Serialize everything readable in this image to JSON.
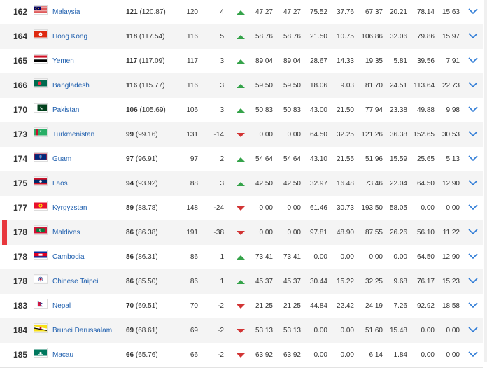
{
  "rows": [
    {
      "rank": "162",
      "country": "Malaysia",
      "flag": "malaysia-flag-icon",
      "pts": "121",
      "pts_exact": "(120.87)",
      "prev": "120",
      "diff": "4",
      "trend": "up",
      "a": "47.27",
      "b": "47.27",
      "c": "75.52",
      "d": "37.76",
      "e": "67.37",
      "f": "20.21",
      "g": "78.14",
      "h": "15.63",
      "highlight": false
    },
    {
      "rank": "164",
      "country": "Hong Kong",
      "flag": "hong-kong-flag-icon",
      "pts": "118",
      "pts_exact": "(117.54)",
      "prev": "116",
      "diff": "5",
      "trend": "up",
      "a": "58.76",
      "b": "58.76",
      "c": "21.50",
      "d": "10.75",
      "e": "106.86",
      "f": "32.06",
      "g": "79.86",
      "h": "15.97",
      "highlight": false
    },
    {
      "rank": "165",
      "country": "Yemen",
      "flag": "yemen-flag-icon",
      "pts": "117",
      "pts_exact": "(117.09)",
      "prev": "117",
      "diff": "3",
      "trend": "up",
      "a": "89.04",
      "b": "89.04",
      "c": "28.67",
      "d": "14.33",
      "e": "19.35",
      "f": "5.81",
      "g": "39.56",
      "h": "7.91",
      "highlight": false
    },
    {
      "rank": "166",
      "country": "Bangladesh",
      "flag": "bangladesh-flag-icon",
      "pts": "116",
      "pts_exact": "(115.77)",
      "prev": "116",
      "diff": "3",
      "trend": "up",
      "a": "59.50",
      "b": "59.50",
      "c": "18.06",
      "d": "9.03",
      "e": "81.70",
      "f": "24.51",
      "g": "113.64",
      "h": "22.73",
      "highlight": false
    },
    {
      "rank": "170",
      "country": "Pakistan",
      "flag": "pakistan-flag-icon",
      "pts": "106",
      "pts_exact": "(105.69)",
      "prev": "106",
      "diff": "3",
      "trend": "up",
      "a": "50.83",
      "b": "50.83",
      "c": "43.00",
      "d": "21.50",
      "e": "77.94",
      "f": "23.38",
      "g": "49.88",
      "h": "9.98",
      "highlight": false
    },
    {
      "rank": "173",
      "country": "Turkmenistan",
      "flag": "turkmenistan-flag-icon",
      "pts": "99",
      "pts_exact": "(99.16)",
      "prev": "131",
      "diff": "-14",
      "trend": "down",
      "a": "0.00",
      "b": "0.00",
      "c": "64.50",
      "d": "32.25",
      "e": "121.26",
      "f": "36.38",
      "g": "152.65",
      "h": "30.53",
      "highlight": false
    },
    {
      "rank": "174",
      "country": "Guam",
      "flag": "guam-flag-icon",
      "pts": "97",
      "pts_exact": "(96.91)",
      "prev": "97",
      "diff": "2",
      "trend": "up",
      "a": "54.64",
      "b": "54.64",
      "c": "43.10",
      "d": "21.55",
      "e": "51.96",
      "f": "15.59",
      "g": "25.65",
      "h": "5.13",
      "highlight": false
    },
    {
      "rank": "175",
      "country": "Laos",
      "flag": "laos-flag-icon",
      "pts": "94",
      "pts_exact": "(93.92)",
      "prev": "88",
      "diff": "3",
      "trend": "up",
      "a": "42.50",
      "b": "42.50",
      "c": "32.97",
      "d": "16.48",
      "e": "73.46",
      "f": "22.04",
      "g": "64.50",
      "h": "12.90",
      "highlight": false
    },
    {
      "rank": "177",
      "country": "Kyrgyzstan",
      "flag": "kyrgyzstan-flag-icon",
      "pts": "89",
      "pts_exact": "(88.78)",
      "prev": "148",
      "diff": "-24",
      "trend": "down",
      "a": "0.00",
      "b": "0.00",
      "c": "61.46",
      "d": "30.73",
      "e": "193.50",
      "f": "58.05",
      "g": "0.00",
      "h": "0.00",
      "highlight": false
    },
    {
      "rank": "178",
      "country": "Maldives",
      "flag": "maldives-flag-icon",
      "pts": "86",
      "pts_exact": "(86.38)",
      "prev": "191",
      "diff": "-38",
      "trend": "down",
      "a": "0.00",
      "b": "0.00",
      "c": "97.81",
      "d": "48.90",
      "e": "87.55",
      "f": "26.26",
      "g": "56.10",
      "h": "11.22",
      "highlight": true
    },
    {
      "rank": "178",
      "country": "Cambodia",
      "flag": "cambodia-flag-icon",
      "pts": "86",
      "pts_exact": "(86.31)",
      "prev": "86",
      "diff": "1",
      "trend": "up",
      "a": "73.41",
      "b": "73.41",
      "c": "0.00",
      "d": "0.00",
      "e": "0.00",
      "f": "0.00",
      "g": "64.50",
      "h": "12.90",
      "highlight": false
    },
    {
      "rank": "178",
      "country": "Chinese Taipei",
      "flag": "chinese-taipei-flag-icon",
      "pts": "86",
      "pts_exact": "(85.50)",
      "prev": "86",
      "diff": "1",
      "trend": "up",
      "a": "45.37",
      "b": "45.37",
      "c": "30.44",
      "d": "15.22",
      "e": "32.25",
      "f": "9.68",
      "g": "76.17",
      "h": "15.23",
      "highlight": false
    },
    {
      "rank": "183",
      "country": "Nepal",
      "flag": "nepal-flag-icon",
      "pts": "70",
      "pts_exact": "(69.51)",
      "prev": "70",
      "diff": "-2",
      "trend": "down",
      "a": "21.25",
      "b": "21.25",
      "c": "44.84",
      "d": "22.42",
      "e": "24.19",
      "f": "7.26",
      "g": "92.92",
      "h": "18.58",
      "highlight": false
    },
    {
      "rank": "184",
      "country": "Brunei Darussalam",
      "flag": "brunei-flag-icon",
      "pts": "69",
      "pts_exact": "(68.61)",
      "prev": "69",
      "diff": "-2",
      "trend": "down",
      "a": "53.13",
      "b": "53.13",
      "c": "0.00",
      "d": "0.00",
      "e": "51.60",
      "f": "15.48",
      "g": "0.00",
      "h": "0.00",
      "highlight": false
    },
    {
      "rank": "185",
      "country": "Macau",
      "flag": "macau-flag-icon",
      "pts": "66",
      "pts_exact": "(65.76)",
      "prev": "66",
      "diff": "-2",
      "trend": "down",
      "a": "63.92",
      "b": "63.92",
      "c": "0.00",
      "d": "0.00",
      "e": "6.14",
      "f": "1.84",
      "g": "0.00",
      "h": "0.00",
      "highlight": false
    }
  ],
  "colors": {
    "link": "#1f5fae",
    "up": "#35a34a",
    "down": "#d23434",
    "highlight": "#e8373d",
    "alt_row": "#f4f4f4",
    "chevron": "#2e7bd6"
  }
}
